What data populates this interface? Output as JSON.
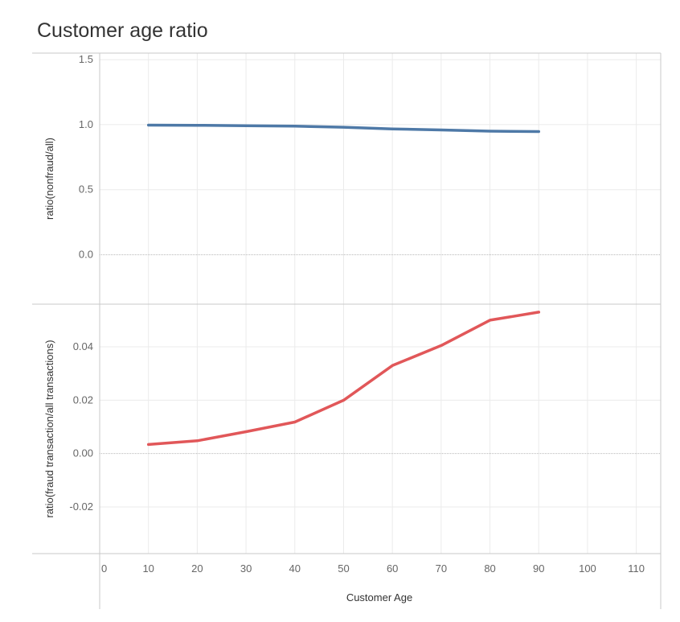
{
  "title": "Customer age ratio",
  "colors": {
    "series_top": "#4e79a7",
    "series_bottom": "#e15759",
    "grid": "#ebebeb",
    "zero_line": "#b8b8b8",
    "frame": "#c8c8c8",
    "text": "#666666",
    "axis_title": "#333333"
  },
  "chart_data": {
    "type": "line",
    "title": "Customer age ratio",
    "xlabel": "Customer Age",
    "x": [
      10,
      20,
      30,
      40,
      50,
      60,
      70,
      80,
      90
    ],
    "xlim": [
      0,
      115
    ],
    "xticks": [
      0,
      10,
      20,
      30,
      40,
      50,
      60,
      70,
      80,
      90,
      100,
      110
    ],
    "xtick_labels": [
      "0",
      "10",
      "20",
      "30",
      "40",
      "50",
      "60",
      "70",
      "80",
      "90",
      "100",
      "110"
    ],
    "grid": true,
    "panels": [
      {
        "ylabel": "ratio(nonfraud/all)",
        "ylim": [
          -0.38,
          1.55
        ],
        "yticks": [
          0.0,
          0.5,
          1.0,
          1.5
        ],
        "ytick_labels": [
          "0.0",
          "0.5",
          "1.0",
          "1.5"
        ],
        "series": [
          {
            "values": [
              0.9966,
              0.9952,
              0.9918,
              0.9882,
              0.98,
              0.967,
              0.9595,
              0.95,
              0.947
            ]
          }
        ]
      },
      {
        "ylabel": "ratio(fraud transaction/all transactions)",
        "ylim": [
          -0.0375,
          0.056
        ],
        "yticks": [
          -0.02,
          0.0,
          0.02,
          0.04
        ],
        "ytick_labels": [
          "-0.02",
          "0.00",
          "0.02",
          "0.04"
        ],
        "series": [
          {
            "values": [
              0.0034,
              0.0048,
              0.0082,
              0.0118,
              0.02,
              0.033,
              0.0405,
              0.05,
              0.053
            ]
          }
        ]
      }
    ]
  }
}
